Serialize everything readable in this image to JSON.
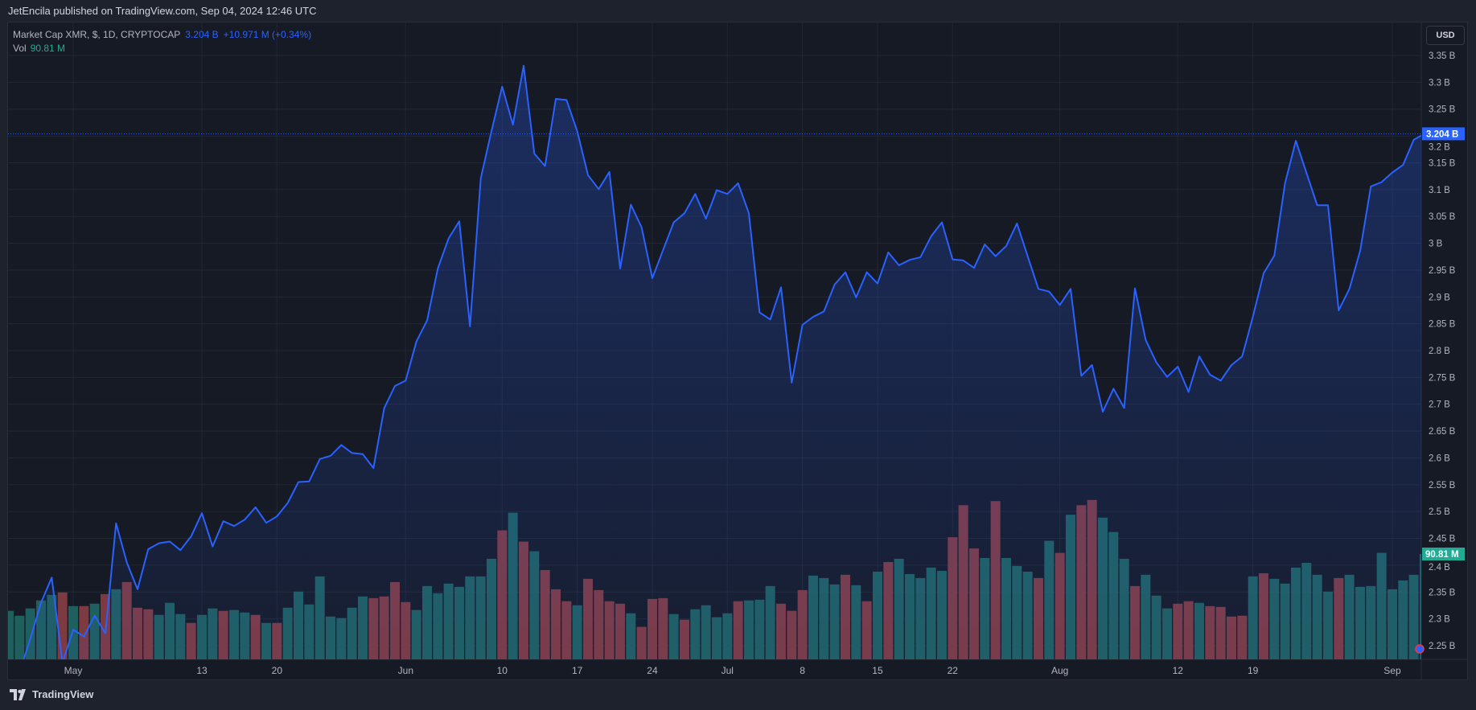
{
  "header": {
    "published": "JetEncila published on TradingView.com, Sep 04, 2024 12:46 UTC"
  },
  "legend": {
    "symbol": "Market Cap XMR, $, 1D, CRYPTOCAP",
    "last": "3.204 B",
    "change": "+10.971 M (+0.34%)",
    "vol_label": "Vol",
    "vol_value": "90.81 M"
  },
  "axis": {
    "currency": "USD",
    "last_price_label": "3.204 B",
    "last_volume_label": "90.81 M"
  },
  "footer": {
    "brand": "TradingView"
  },
  "colors": {
    "line": "#2962ff",
    "up": "#1f5f5e",
    "down": "#7e3a41",
    "volume_label": "#22ab94",
    "grid": "#232733"
  },
  "chart_data": {
    "type": "line",
    "title": "Market Cap XMR, $, 1D, CRYPTOCAP",
    "start_date": "2024-04-25",
    "end_date": "2024-09-04",
    "ylabel": "USD",
    "ylim": [
      2.22,
      3.36
    ],
    "y_unit": "B",
    "y_ticks": [
      "3.35 B",
      "3.3 B",
      "3.25 B",
      "3.2 B",
      "3.15 B",
      "3.1 B",
      "3.05 B",
      "3 B",
      "2.95 B",
      "2.9 B",
      "2.85 B",
      "2.8 B",
      "2.75 B",
      "2.7 B",
      "2.65 B",
      "2.6 B",
      "2.55 B",
      "2.5 B",
      "2.45 B",
      "2.4 B",
      "2.35 B",
      "2.3 B",
      "2.25 B"
    ],
    "y_tick_values": [
      3.35,
      3.3,
      3.25,
      3.2,
      3.15,
      3.1,
      3.05,
      3.0,
      2.95,
      2.9,
      2.85,
      2.8,
      2.75,
      2.7,
      2.65,
      2.6,
      2.55,
      2.5,
      2.45,
      2.4,
      2.35,
      2.3,
      2.25
    ],
    "x_ticks": [
      {
        "label": "May",
        "day": 6
      },
      {
        "label": "13",
        "day": 18
      },
      {
        "label": "20",
        "day": 25
      },
      {
        "label": "Jun",
        "day": 37
      },
      {
        "label": "10",
        "day": 46
      },
      {
        "label": "17",
        "day": 53
      },
      {
        "label": "24",
        "day": 60
      },
      {
        "label": "Jul",
        "day": 67
      },
      {
        "label": "8",
        "day": 74
      },
      {
        "label": "15",
        "day": 81
      },
      {
        "label": "22",
        "day": 88
      },
      {
        "label": "Aug",
        "day": 98
      },
      {
        "label": "12",
        "day": 109
      },
      {
        "label": "19",
        "day": 116
      },
      {
        "label": "Sep",
        "day": 129
      }
    ],
    "market_cap_b": [
      2.16,
      2.2,
      2.263,
      2.33,
      2.377,
      2.218,
      2.28,
      2.267,
      2.306,
      2.273,
      2.478,
      2.405,
      2.355,
      2.43,
      2.441,
      2.444,
      2.428,
      2.454,
      2.497,
      2.435,
      2.482,
      2.473,
      2.485,
      2.508,
      2.479,
      2.491,
      2.516,
      2.555,
      2.556,
      2.598,
      2.604,
      2.624,
      2.609,
      2.607,
      2.581,
      2.693,
      2.734,
      2.744,
      2.817,
      2.856,
      2.953,
      3.009,
      3.041,
      2.845,
      3.121,
      3.209,
      3.292,
      3.221,
      3.331,
      3.167,
      3.144,
      3.269,
      3.267,
      3.209,
      3.127,
      3.101,
      3.133,
      2.953,
      3.072,
      3.03,
      2.935,
      2.987,
      3.039,
      3.056,
      3.092,
      3.046,
      3.099,
      3.092,
      3.112,
      3.056,
      2.871,
      2.858,
      2.918,
      2.74,
      2.848,
      2.863,
      2.873,
      2.923,
      2.946,
      2.899,
      2.946,
      2.925,
      2.983,
      2.959,
      2.969,
      2.974,
      3.013,
      3.039,
      2.97,
      2.968,
      2.954,
      2.998,
      2.976,
      2.995,
      3.037,
      2.976,
      2.915,
      2.91,
      2.885,
      2.915,
      2.753,
      2.773,
      2.686,
      2.729,
      2.693,
      2.916,
      2.82,
      2.778,
      2.751,
      2.77,
      2.723,
      2.789,
      2.755,
      2.744,
      2.773,
      2.789,
      2.863,
      2.944,
      2.977,
      3.112,
      3.191,
      3.131,
      3.071,
      3.071,
      2.875,
      2.915,
      2.986,
      3.106,
      3.114,
      3.132,
      3.146,
      3.193,
      3.204
    ],
    "volume_m": [
      41.8,
      37.6,
      43.9,
      50.8,
      55.6,
      57.7,
      45.9,
      45.9,
      48.0,
      56.3,
      60.4,
      66.6,
      44.5,
      43.2,
      38.3,
      48.7,
      39.0,
      31.4,
      38.3,
      43.9,
      41.8,
      42.5,
      40.4,
      38.3,
      31.4,
      31.4,
      44.5,
      58.4,
      47.3,
      71.5,
      36.9,
      35.6,
      44.5,
      54.2,
      52.8,
      54.2,
      66.6,
      49.4,
      42.5,
      63.2,
      57.0,
      65.3,
      62.5,
      71.5,
      71.5,
      86.7,
      111.2,
      126.4,
      101.5,
      93.2,
      77.0,
      60.4,
      50.1,
      46.6,
      69.4,
      59.7,
      50.1,
      48.0,
      39.7,
      28.0,
      52.1,
      52.8,
      39.0,
      34.2,
      43.2,
      46.6,
      36.3,
      39.7,
      50.1,
      50.8,
      51.4,
      63.2,
      48.0,
      41.8,
      59.7,
      72.2,
      70.1,
      64.6,
      72.9,
      63.9,
      50.1,
      75.6,
      83.9,
      86.7,
      73.5,
      70.1,
      79.1,
      76.3,
      105.3,
      132.9,
      95.6,
      87.4,
      136.4,
      87.4,
      80.5,
      75.6,
      70.1,
      102.2,
      91.8,
      124.7,
      132.9,
      137.4,
      122.2,
      109.8,
      86.7,
      63.2,
      72.9,
      54.9,
      43.9,
      48.0,
      50.1,
      48.7,
      45.9,
      45.2,
      36.9,
      37.6,
      71.5,
      74.2,
      69.4,
      65.3,
      79.1,
      83.2,
      72.9,
      58.4,
      70.1,
      72.9,
      62.5,
      63.2,
      91.8,
      60.4,
      68.0,
      72.9,
      90.81
    ],
    "volume_direction": "uuuuududududdduuuduuduududuuuuuuuudddduuuuuuuudududddudddduddduduuuuduuuddduuudududuuuuuddduduuudududduuuduuuddudddduduuuuuuduuuuuuuu"
  }
}
